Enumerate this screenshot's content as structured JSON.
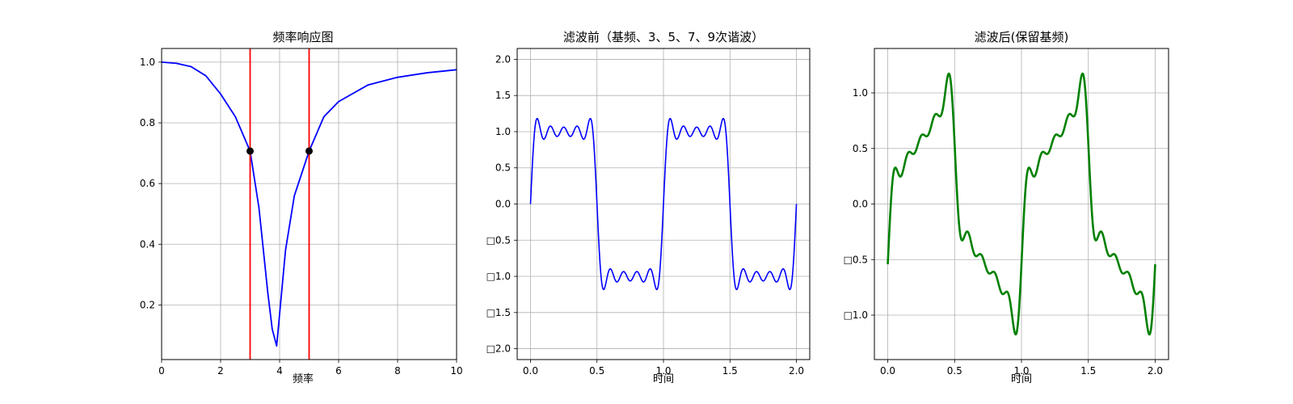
{
  "chart_data": [
    {
      "type": "line",
      "title": "频率响应图",
      "xlabel": "频率",
      "ylabel": "",
      "xlim": [
        0,
        10
      ],
      "ylim": [
        0.02,
        1.045
      ],
      "xticks": [
        0,
        2,
        4,
        6,
        8,
        10
      ],
      "xtick_labels": [
        "0",
        "2",
        "4",
        "6",
        "8",
        "10"
      ],
      "yticks": [
        0.2,
        0.4,
        0.6,
        0.8,
        1.0
      ],
      "ytick_labels": [
        "0.2",
        "0.4",
        "0.6",
        "0.8",
        "1.0"
      ],
      "grid": true,
      "series": [
        {
          "color": "#0000ff",
          "x": [
            0,
            0.5,
            1.0,
            1.5,
            2.0,
            2.5,
            3.0,
            3.3,
            3.6,
            3.75,
            3.9,
            4.2,
            4.5,
            5.0,
            5.5,
            6.0,
            7.0,
            8.0,
            9.0,
            10.0
          ],
          "y": [
            1.0,
            0.996,
            0.985,
            0.955,
            0.895,
            0.82,
            0.707,
            0.52,
            0.24,
            0.12,
            0.065,
            0.38,
            0.56,
            0.707,
            0.82,
            0.87,
            0.925,
            0.95,
            0.965,
            0.975
          ]
        }
      ],
      "vlines": [
        {
          "x": 3,
          "color": "#ff0000"
        },
        {
          "x": 5,
          "color": "#ff0000"
        }
      ],
      "markers": [
        {
          "x": 3,
          "y": 0.707,
          "color": "#000000"
        },
        {
          "x": 5,
          "y": 0.707,
          "color": "#000000"
        }
      ]
    },
    {
      "type": "line",
      "title": "滤波前（基频、3、5、7、9次谐波）",
      "xlabel": "时间",
      "ylabel": "",
      "xlim": [
        -0.1,
        2.1
      ],
      "ylim": [
        -2.15,
        2.15
      ],
      "xticks": [
        0.0,
        0.5,
        1.0,
        1.5,
        2.0
      ],
      "xtick_labels": [
        "0.0",
        "0.5",
        "1.0",
        "1.5",
        "2.0"
      ],
      "yticks": [
        -2.0,
        -1.5,
        -1.0,
        -0.5,
        0.0,
        0.5,
        1.0,
        1.5,
        2.0
      ],
      "ytick_labels": [
        "□2.0",
        "□1.5",
        "□1.0",
        "□0.5",
        "0.0",
        "0.5",
        "1.0",
        "1.5",
        "2.0"
      ],
      "grid": true,
      "signal": {
        "period": 1,
        "harmonics": [
          1,
          3,
          5,
          7,
          9
        ],
        "amplitude": "4/pi",
        "x_range": [
          0,
          2
        ]
      },
      "series": [
        {
          "color": "#0000ff",
          "line_weight": "thin"
        }
      ]
    },
    {
      "type": "line",
      "title": "滤波后(保留基频)",
      "xlabel": "时间",
      "ylabel": "",
      "xlim": [
        -0.1,
        2.1
      ],
      "ylim": [
        -1.4,
        1.4
      ],
      "xticks": [
        0.0,
        0.5,
        1.0,
        1.5,
        2.0
      ],
      "xtick_labels": [
        "0.0",
        "0.5",
        "1.0",
        "1.5",
        "2.0"
      ],
      "yticks": [
        -1.0,
        -0.5,
        0.0,
        0.5,
        1.0
      ],
      "ytick_labels": [
        "□1.0",
        "□0.5",
        "0.0",
        "0.5",
        "1.0"
      ],
      "grid": true,
      "signal": {
        "period": 1,
        "x_range": [
          0,
          2
        ],
        "terms": [
          {
            "harmonic": 1,
            "amp": 0.85,
            "phase": -0.5
          },
          {
            "harmonic": 3,
            "amp": 0.28,
            "phase": -0.3
          },
          {
            "harmonic": 5,
            "amp": 0.17,
            "phase": -0.18
          },
          {
            "harmonic": 7,
            "amp": 0.12,
            "phase": -0.12
          },
          {
            "harmonic": 9,
            "amp": 0.09,
            "phase": -0.08
          }
        ]
      },
      "series": [
        {
          "color": "#008000",
          "line_weight": "thick"
        }
      ]
    }
  ]
}
